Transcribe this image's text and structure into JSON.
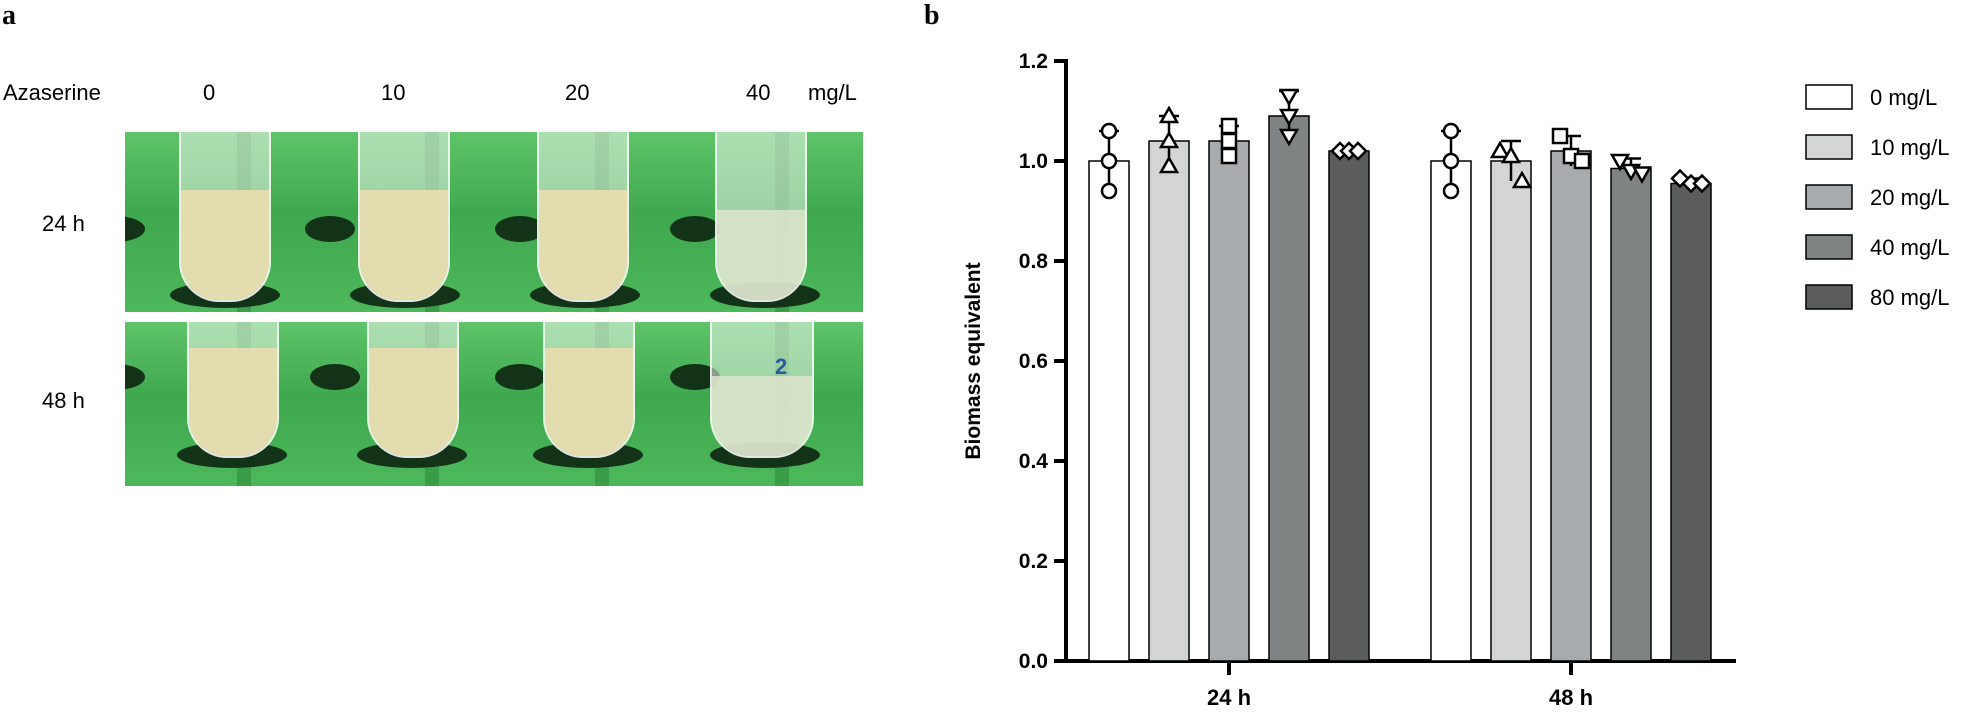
{
  "panel_a": {
    "label": "a",
    "row_header": "Azaserine",
    "concentrations": [
      "0",
      "10",
      "20",
      "40"
    ],
    "unit": "mg/L",
    "time_labels": [
      "24 h",
      "48 h"
    ],
    "tube_marking": "2"
  },
  "panel_b": {
    "label": "b"
  },
  "chart_data": {
    "type": "bar",
    "ylabel": "Biomass equivalent",
    "xlabel": "",
    "ylim": [
      0,
      1.2
    ],
    "yticks": [
      "0.0",
      "0.2",
      "0.4",
      "0.6",
      "0.8",
      "1.0",
      "1.2"
    ],
    "categories": [
      "24 h",
      "48 h"
    ],
    "legend_position": "right",
    "series": [
      {
        "name": "0 mg/L",
        "color": "#ffffff",
        "marker": "circle",
        "values": [
          1.0,
          1.0
        ],
        "error": [
          0.06,
          0.06
        ],
        "points": [
          [
            1.06,
            1.0,
            0.94
          ],
          [
            1.06,
            1.0,
            0.94
          ]
        ]
      },
      {
        "name": "10 mg/L",
        "color": "#d3d5d5",
        "marker": "triangle-up",
        "values": [
          1.04,
          1.0
        ],
        "error": [
          0.05,
          0.04
        ],
        "points": [
          [
            1.09,
            1.04,
            0.99
          ],
          [
            1.02,
            1.01,
            0.96
          ]
        ]
      },
      {
        "name": "20 mg/L",
        "color": "#a8abad",
        "marker": "square",
        "values": [
          1.04,
          1.02
        ],
        "error": [
          0.03,
          0.03
        ],
        "points": [
          [
            1.07,
            1.04,
            1.01
          ],
          [
            1.05,
            1.01,
            1.0
          ]
        ]
      },
      {
        "name": "40 mg/L",
        "color": "#808383",
        "marker": "triangle-down",
        "values": [
          1.09,
          0.985
        ],
        "error": [
          0.05,
          0.02
        ],
        "points": [
          [
            1.13,
            1.09,
            1.05
          ],
          [
            1.0,
            0.98,
            0.975
          ]
        ]
      },
      {
        "name": "80 mg/L",
        "color": "#5b5c5c",
        "marker": "diamond",
        "values": [
          1.02,
          0.955
        ],
        "error": [
          0.0,
          0.01
        ],
        "points": [
          [
            1.02,
            1.02,
            1.02
          ],
          [
            0.965,
            0.955,
            0.955
          ]
        ]
      }
    ]
  }
}
